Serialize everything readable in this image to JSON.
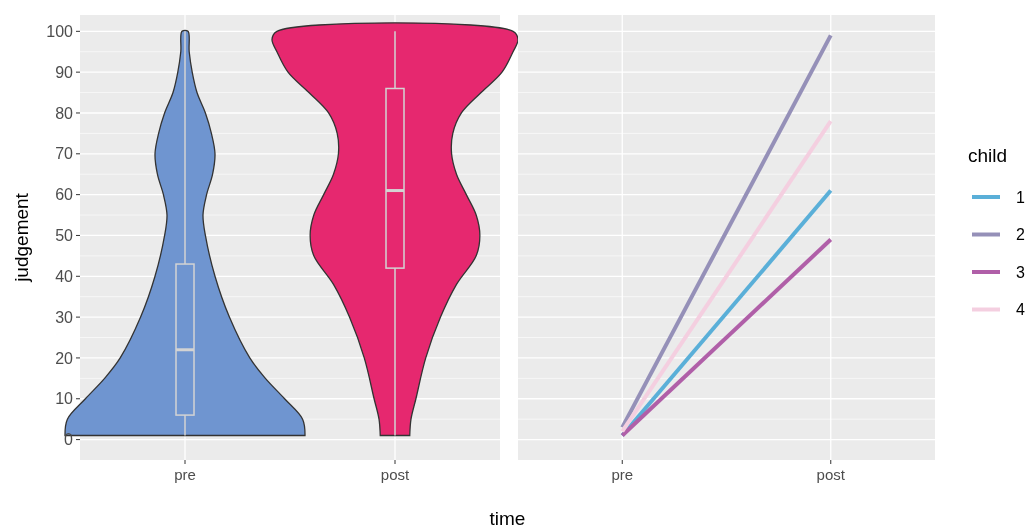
{
  "chart_data": [
    {
      "type": "box",
      "xlabel": "time",
      "ylabel": "judgement",
      "categories": [
        "pre",
        "post"
      ],
      "colors": [
        "#6f95d0",
        "#e6286f"
      ],
      "boxes": [
        {
          "low": 1,
          "q1": 6,
          "median": 22,
          "q3": 43,
          "high": 100
        },
        {
          "low": 1,
          "q1": 42,
          "median": 61,
          "q3": 86,
          "high": 100
        }
      ],
      "ylim": [
        -5,
        104
      ],
      "yticks": [
        0,
        10,
        20,
        30,
        40,
        50,
        60,
        70,
        80,
        90,
        100
      ],
      "grid": true
    },
    {
      "type": "line",
      "categories": [
        "pre",
        "post"
      ],
      "legend_title": "child",
      "legend": "right",
      "series": [
        {
          "name": "1",
          "color": "#5aafd8",
          "values": [
            1,
            61
          ]
        },
        {
          "name": "2",
          "color": "#9590b8",
          "values": [
            3,
            99
          ]
        },
        {
          "name": "3",
          "color": "#b05fa8",
          "values": [
            1,
            49
          ]
        },
        {
          "name": "4",
          "color": "#f4cfe0",
          "values": [
            2,
            78
          ]
        }
      ],
      "ylim": [
        -5,
        104
      ],
      "yticks": [
        0,
        10,
        20,
        30,
        40,
        50,
        60,
        70,
        80,
        90,
        100
      ],
      "grid": true,
      "tick_labels": "x"
    }
  ]
}
